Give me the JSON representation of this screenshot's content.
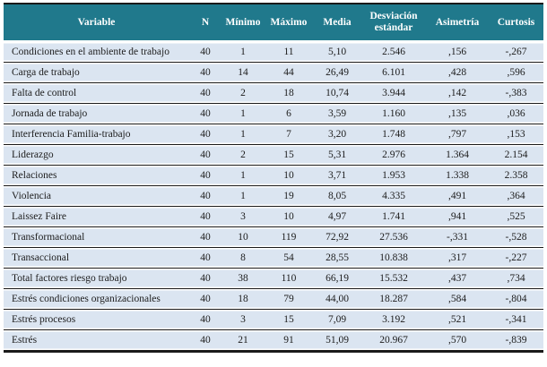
{
  "colors": {
    "header_bg": "#20798c",
    "header_text": "#ffffff",
    "row_bg": "#dbe5f1",
    "line": "#1a1a1a"
  },
  "table": {
    "columns": [
      {
        "key": "variable",
        "label": "Variable"
      },
      {
        "key": "n",
        "label": "N"
      },
      {
        "key": "minimo",
        "label": "Mínimo"
      },
      {
        "key": "maximo",
        "label": "Máximo"
      },
      {
        "key": "media",
        "label": "Media"
      },
      {
        "key": "desviacion",
        "label": "Desviación estándar"
      },
      {
        "key": "asimetria",
        "label": "Asimetría"
      },
      {
        "key": "curtosis",
        "label": "Curtosis"
      }
    ],
    "rows": [
      {
        "variable": "Condiciones en el ambiente de trabajo",
        "n": "40",
        "minimo": "1",
        "maximo": "11",
        "media": "5,10",
        "desviacion": "2.546",
        "asimetria": ",156",
        "curtosis": "-,267"
      },
      {
        "variable": "Carga de trabajo",
        "n": "40",
        "minimo": "14",
        "maximo": "44",
        "media": "26,49",
        "desviacion": "6.101",
        "asimetria": ",428",
        "curtosis": ",596"
      },
      {
        "variable": "Falta de control",
        "n": "40",
        "minimo": "2",
        "maximo": "18",
        "media": "10,74",
        "desviacion": "3.944",
        "asimetria": ",142",
        "curtosis": "-,383"
      },
      {
        "variable": "Jornada de trabajo",
        "n": "40",
        "minimo": "1",
        "maximo": "6",
        "media": "3,59",
        "desviacion": "1.160",
        "asimetria": ",135",
        "curtosis": ",036"
      },
      {
        "variable": "Interferencia Familia-trabajo",
        "n": "40",
        "minimo": "1",
        "maximo": "7",
        "media": "3,20",
        "desviacion": "1.748",
        "asimetria": ",797",
        "curtosis": ",153"
      },
      {
        "variable": "Liderazgo",
        "n": "40",
        "minimo": "2",
        "maximo": "15",
        "media": "5,31",
        "desviacion": "2.976",
        "asimetria": "1.364",
        "curtosis": "2.154"
      },
      {
        "variable": "Relaciones",
        "n": "40",
        "minimo": "1",
        "maximo": "10",
        "media": "3,71",
        "desviacion": "1.953",
        "asimetria": "1.338",
        "curtosis": "2.358"
      },
      {
        "variable": "Violencia",
        "n": "40",
        "minimo": "1",
        "maximo": "19",
        "media": "8,05",
        "desviacion": "4.335",
        "asimetria": ",491",
        "curtosis": ",364"
      },
      {
        "variable": "Laissez Faire",
        "n": "40",
        "minimo": "3",
        "maximo": "10",
        "media": "4,97",
        "desviacion": "1.741",
        "asimetria": ",941",
        "curtosis": ",525"
      },
      {
        "variable": "Transformacional",
        "n": "40",
        "minimo": "10",
        "maximo": "119",
        "media": "72,92",
        "desviacion": "27.536",
        "asimetria": "-,331",
        "curtosis": "-,528"
      },
      {
        "variable": "Transaccional",
        "n": "40",
        "minimo": "8",
        "maximo": "54",
        "media": "28,55",
        "desviacion": "10.838",
        "asimetria": ",317",
        "curtosis": "-,227"
      },
      {
        "variable": "Total factores riesgo trabajo",
        "n": "40",
        "minimo": "38",
        "maximo": "110",
        "media": "66,19",
        "desviacion": "15.532",
        "asimetria": ",437",
        "curtosis": ",734"
      },
      {
        "variable": "Estrés condiciones organizacionales",
        "n": "40",
        "minimo": "18",
        "maximo": "79",
        "media": "44,00",
        "desviacion": "18.287",
        "asimetria": ",584",
        "curtosis": "-,804"
      },
      {
        "variable": "Estrés procesos",
        "n": "40",
        "minimo": "3",
        "maximo": "15",
        "media": "7,09",
        "desviacion": "3.192",
        "asimetria": ",521",
        "curtosis": "-,341"
      },
      {
        "variable": "Estrés",
        "n": "40",
        "minimo": "21",
        "maximo": "91",
        "media": "51,09",
        "desviacion": "20.967",
        "asimetria": ",570",
        "curtosis": "-,839"
      }
    ]
  }
}
